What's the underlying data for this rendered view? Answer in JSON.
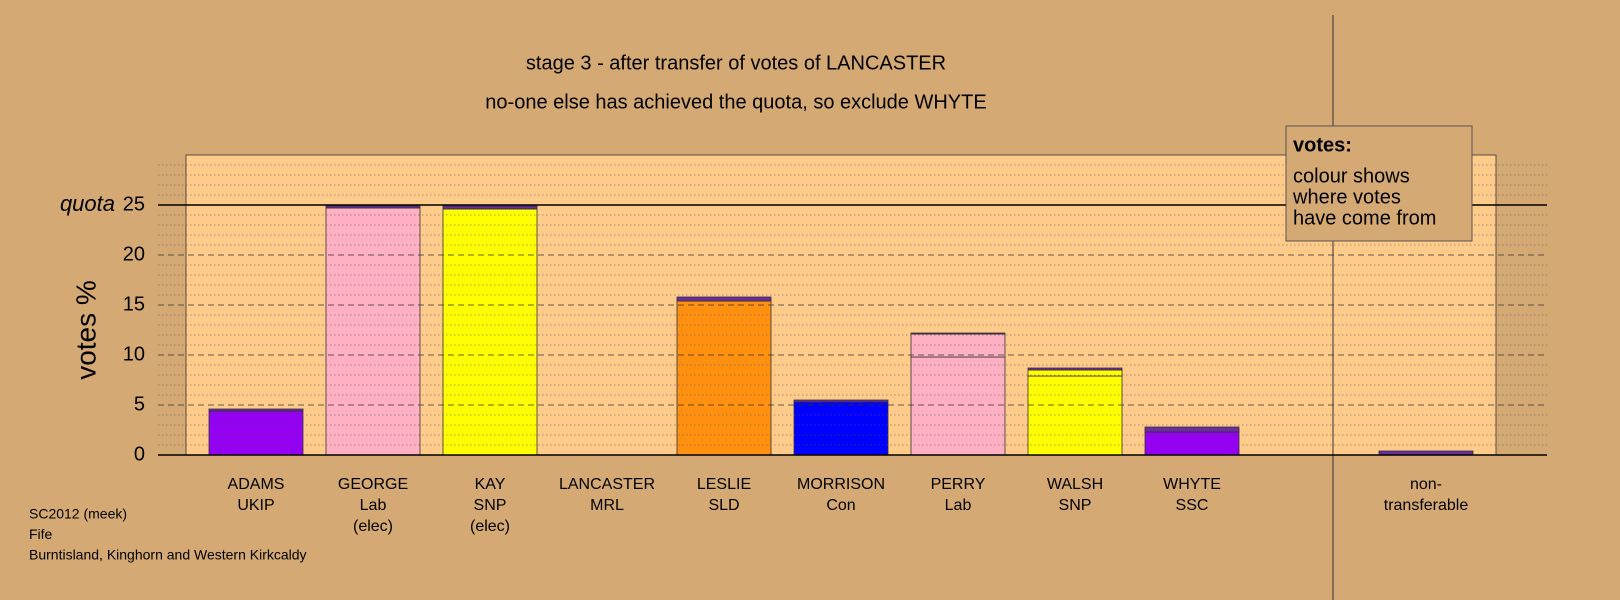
{
  "chart_data": {
    "type": "stacked_bar",
    "title": "stage 3 - after transfer of votes of LANCASTER",
    "subtitle": "no-one else has achieved the quota, so exclude WHYTE",
    "y_label": "votes %",
    "quota": 25,
    "quota_label": "quota",
    "categories": [
      [
        "ADAMS",
        "UKIP"
      ],
      [
        "GEORGE",
        "Lab",
        "(elec)"
      ],
      [
        "KAY",
        "SNP",
        "(elec)"
      ],
      [
        "LANCASTER",
        "MRL"
      ],
      [
        "LESLIE",
        "SLD"
      ],
      [
        "MORRISON",
        "Con"
      ],
      [
        "PERRY",
        "Lab"
      ],
      [
        "WALSH",
        "SNP"
      ],
      [
        "WHYTE",
        "SSC"
      ],
      [
        "non-",
        "transferable"
      ]
    ],
    "series": [
      {
        "colors": [
          "#9400f2",
          "#ffb0c2",
          "#ffff00",
          "#666666",
          "#ff9010",
          "#0000ff",
          "#ffb0c2",
          "#ffff00",
          "#9400f2",
          "#9400f2"
        ],
        "values": [
          4.4,
          24.7,
          24.6,
          0,
          15.4,
          5.3,
          9.8,
          7.9,
          2.3,
          0
        ]
      },
      {
        "color": "#ffb0c2",
        "values": [
          0,
          0,
          0,
          0,
          0,
          0,
          2.3,
          0,
          0,
          0
        ]
      },
      {
        "color": "#ffff00",
        "values": [
          0,
          0,
          0,
          0,
          0,
          0,
          0,
          0.6,
          0,
          0
        ]
      },
      {
        "color": "#6a2ca0",
        "values": [
          0.2,
          0.2,
          0.3,
          0,
          0.4,
          0.2,
          0.1,
          0.2,
          0.5,
          0.4
        ]
      }
    ],
    "ylim": [
      0,
      30
    ],
    "yticks": [
      0,
      5,
      10,
      15,
      20,
      25
    ],
    "minor_yticks": [
      1,
      2,
      3,
      4,
      6,
      7,
      8,
      9,
      11,
      12,
      13,
      14,
      16,
      17,
      18,
      19,
      21,
      22,
      23,
      24,
      26,
      27,
      28,
      29
    ],
    "grid": true,
    "note": {
      "heading": "votes:",
      "lines": [
        "colour shows",
        "where votes",
        "have come from"
      ]
    },
    "footer": [
      "SC2012 (meek)",
      "Fife",
      "Burntisland, Kinghorn and Western Kirkcaldy"
    ]
  }
}
